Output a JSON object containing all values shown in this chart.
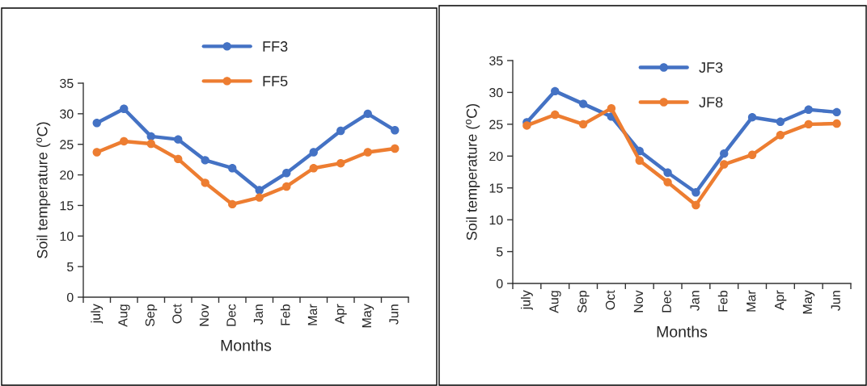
{
  "chart_data": [
    {
      "type": "line",
      "xlabel": "Months",
      "ylabel": "Soil temperature ($^{o}$C)",
      "categories": [
        "july",
        "Aug",
        "Sep",
        "Oct",
        "Nov",
        "Dec",
        "Jan",
        "Feb",
        "Mar",
        "Apr",
        "May",
        "Jun"
      ],
      "series": [
        {
          "name": "FF3",
          "color": "#4472c4",
          "values": [
            28.5,
            30.8,
            26.3,
            25.8,
            22.4,
            21.1,
            17.5,
            20.3,
            23.7,
            27.2,
            30.0,
            27.3
          ]
        },
        {
          "name": "FF5",
          "color": "#ed7d31",
          "values": [
            23.7,
            25.5,
            25.1,
            22.6,
            18.7,
            15.2,
            16.3,
            18.1,
            21.1,
            21.9,
            23.7,
            24.3
          ]
        }
      ],
      "ylim": [
        0,
        35
      ],
      "yticks": [
        0,
        5,
        10,
        15,
        20,
        25,
        30,
        35
      ],
      "legend": "top",
      "marker": "circle",
      "line_style": "solid"
    },
    {
      "type": "line",
      "xlabel": "Months",
      "ylabel": "Soil temperature ($^{o}$C)",
      "categories": [
        "july",
        "Aug",
        "Sep",
        "Oct",
        "Nov",
        "Dec",
        "Jan",
        "Feb",
        "Mar",
        "Apr",
        "May",
        "Jun"
      ],
      "series": [
        {
          "name": "JF3",
          "color": "#4472c4",
          "values": [
            25.3,
            30.2,
            28.2,
            26.2,
            20.8,
            17.4,
            14.3,
            20.4,
            26.1,
            25.4,
            27.3,
            26.9
          ]
        },
        {
          "name": "JF8",
          "color": "#ed7d31",
          "values": [
            24.8,
            26.5,
            25.0,
            27.5,
            19.3,
            15.9,
            12.3,
            18.7,
            20.2,
            23.3,
            25.0,
            25.1
          ]
        }
      ],
      "ylim": [
        0,
        35
      ],
      "yticks": [
        0,
        5,
        10,
        15,
        20,
        25,
        30,
        35
      ],
      "legend": "top",
      "marker": "circle",
      "line_style": "solid"
    }
  ]
}
